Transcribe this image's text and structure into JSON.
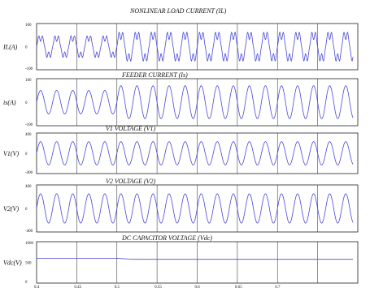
{
  "chart_data": [
    {
      "type": "line",
      "title": "NONLINEAR LOAD CURRENT (IL)",
      "ylabel": "IL(A)",
      "ylim": [
        -100,
        100
      ],
      "yticks": [
        "100",
        "0",
        "-100"
      ],
      "xlim": [
        0.4,
        0.8
      ],
      "grid": "vertical",
      "series": [
        {
          "waveform": "distorted-sine",
          "amplitude_before_0_5": 60,
          "amplitude_after_0_5": 80,
          "frequency_hz": 50
        }
      ]
    },
    {
      "type": "line",
      "title": "FEEDER CURRENT (Is)",
      "ylabel": "is(A)",
      "ylim": [
        -100,
        100
      ],
      "yticks": [
        "100",
        "0",
        "-100"
      ],
      "xlim": [
        0.4,
        0.8
      ],
      "grid": "vertical",
      "series": [
        {
          "waveform": "sine",
          "amplitude_before_0_5": 50,
          "amplitude_after_0_5": 70,
          "frequency_hz": 50
        }
      ]
    },
    {
      "type": "line",
      "title": "V1 VOLTAGE (V1)",
      "ylabel": "V1(V)",
      "ylim": [
        -400,
        400
      ],
      "yticks": [
        "400",
        "0",
        "-400"
      ],
      "xlim": [
        0.4,
        0.8
      ],
      "grid": "vertical",
      "series": [
        {
          "waveform": "sine",
          "amplitude": 230,
          "frequency_hz": 50
        }
      ]
    },
    {
      "type": "line",
      "title": "V2 VOLTAGE (V2)",
      "ylabel": "V2(V)",
      "ylim": [
        -400,
        400
      ],
      "yticks": [
        "400",
        "0",
        "-400"
      ],
      "xlim": [
        0.4,
        0.8
      ],
      "grid": "vertical",
      "series": [
        {
          "waveform": "sine",
          "amplitude": 250,
          "frequency_hz": 50
        }
      ]
    },
    {
      "type": "line",
      "title": "DC CAPACITOR VOLTAGE (Vdc)",
      "ylabel": "Vdc(V)",
      "ylim": [
        0,
        1000
      ],
      "yticks": [
        "1000",
        "500",
        "0"
      ],
      "xlim": [
        0.4,
        0.8
      ],
      "xticks": [
        "0.4",
        "0.45",
        "0.5",
        "0.55",
        "0.6",
        "0.65",
        "0.7"
      ],
      "grid": "vertical",
      "series": [
        {
          "waveform": "dc",
          "level_before_0_5": 600,
          "level_after_0_52": 575
        }
      ]
    }
  ]
}
